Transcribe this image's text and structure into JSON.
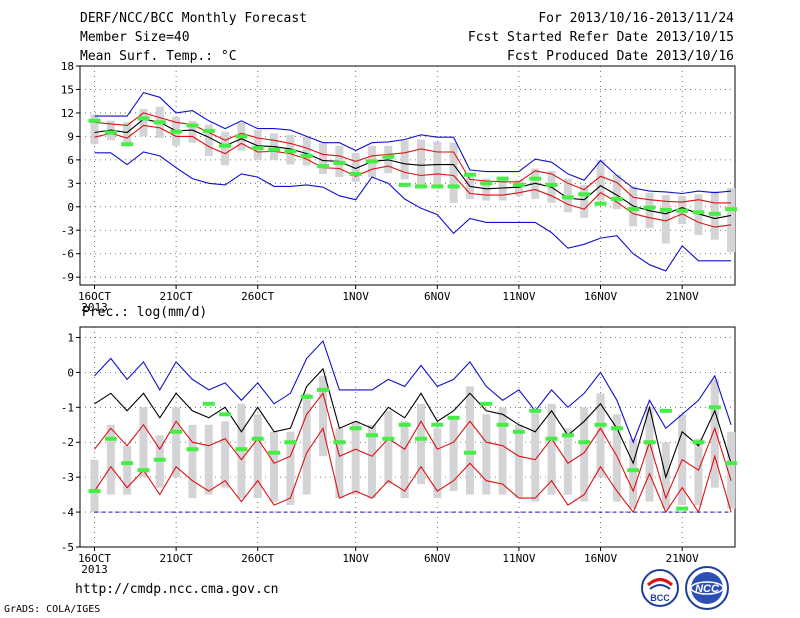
{
  "header": {
    "title": "DERF/NCC/BCC Monthly Forecast",
    "member_size": "Member Size=40",
    "variable": "Mean Surf. Temp.: °C",
    "forecast_period": "For 2013/10/16-2013/11/24",
    "start_ref_date": "Fcst Started Refer Date 2013/10/15",
    "produced_date": "Fcst Produced Date 2013/10/16"
  },
  "footer": {
    "url": "http://cmdp.ncc.cma.gov.cn",
    "credit": "GrADS: COLA/IGES",
    "logos": [
      "BCC",
      "NCC"
    ]
  },
  "colors": {
    "box": "#d4d4d6",
    "median": "#44ee44",
    "mean": "#000000",
    "std": "#dd1111",
    "extreme": "#1111cc",
    "grid": "#555555"
  },
  "chart_data": [
    {
      "type": "box-plot",
      "title": "Mean Surf. Temp.: °C",
      "x_tick_labels": [
        "16OCT",
        "21OCT",
        "26OCT",
        "1NOV",
        "6NOV",
        "11NOV",
        "16NOV",
        "21NOV"
      ],
      "x_tick_days": [
        1,
        6,
        11,
        17,
        22,
        27,
        32,
        37
      ],
      "x_year_label": "2013",
      "ylim": [
        -10,
        18
      ],
      "y_ticks": [
        -9,
        -6,
        -3,
        0,
        3,
        6,
        9,
        12,
        15,
        18
      ],
      "grid": true,
      "days": [
        1,
        2,
        3,
        4,
        5,
        6,
        7,
        8,
        9,
        10,
        11,
        12,
        13,
        14,
        15,
        16,
        17,
        18,
        19,
        20,
        21,
        22,
        23,
        24,
        25,
        26,
        27,
        28,
        29,
        30,
        31,
        32,
        33,
        34,
        35,
        36,
        37,
        38,
        39,
        40
      ],
      "max": [
        11.6,
        11.6,
        11.6,
        14.6,
        14.0,
        12.0,
        12.3,
        11.0,
        10.0,
        11.0,
        10.0,
        10.0,
        9.8,
        9.0,
        8.2,
        8.2,
        7.2,
        8.2,
        8.3,
        8.6,
        9.2,
        8.9,
        8.9,
        4.7,
        4.5,
        4.5,
        4.5,
        6.1,
        5.7,
        4.2,
        3.4,
        5.9,
        4.0,
        2.4,
        2.0,
        1.9,
        1.7,
        2.0,
        1.8,
        2.0
      ],
      "q3": [
        10.8,
        10.6,
        10.4,
        12.0,
        11.4,
        10.8,
        10.5,
        9.5,
        8.5,
        9.4,
        8.8,
        8.5,
        8.1,
        7.5,
        6.7,
        6.5,
        5.8,
        6.5,
        6.7,
        6.9,
        7.4,
        7.0,
        7.0,
        3.5,
        3.3,
        3.2,
        3.2,
        4.6,
        4.2,
        3.0,
        2.2,
        3.9,
        3.1,
        1.2,
        0.9,
        0.7,
        0.6,
        0.9,
        0.5,
        0.5
      ],
      "mean": [
        9.5,
        9.8,
        9.5,
        11.2,
        10.8,
        9.7,
        9.8,
        8.9,
        7.8,
        8.7,
        7.8,
        7.7,
        7.4,
        6.8,
        5.9,
        5.8,
        4.9,
        5.8,
        6.0,
        5.5,
        5.3,
        5.4,
        5.4,
        2.6,
        2.3,
        2.4,
        2.5,
        3.0,
        2.5,
        1.1,
        0.9,
        2.7,
        1.5,
        0.1,
        -0.5,
        -0.9,
        -0.1,
        -0.9,
        -1.5,
        -1.1
      ],
      "q1": [
        8.9,
        9.4,
        8.8,
        10.4,
        10.1,
        9.0,
        9.0,
        7.7,
        6.8,
        8.1,
        7.0,
        7.1,
        6.8,
        6.1,
        5.0,
        4.9,
        3.9,
        4.8,
        5.2,
        4.4,
        4.0,
        4.2,
        4.0,
        1.7,
        1.5,
        1.5,
        1.8,
        2.2,
        1.4,
        0.3,
        -0.3,
        1.8,
        0.6,
        -0.9,
        -1.4,
        -1.8,
        -0.9,
        -2.0,
        -2.6,
        -2.3
      ],
      "min": [
        6.9,
        6.9,
        5.4,
        7.0,
        6.5,
        5.0,
        3.6,
        3.0,
        2.8,
        4.2,
        3.8,
        2.6,
        2.6,
        2.8,
        2.5,
        1.4,
        0.9,
        3.8,
        3.0,
        1.0,
        -0.2,
        -1.0,
        -3.4,
        -1.5,
        -2.0,
        -2.0,
        -2.0,
        -2.0,
        -3.3,
        -5.3,
        -4.8,
        -4.0,
        -3.7,
        -6.0,
        -7.4,
        -8.2,
        -5.0,
        -6.9,
        -6.9,
        -6.9
      ],
      "box_high": [
        11.8,
        11.0,
        10.8,
        12.5,
        12.8,
        11.5,
        11.0,
        10.5,
        9.6,
        10.8,
        9.8,
        9.4,
        9.2,
        9.0,
        8.1,
        7.8,
        6.9,
        7.8,
        7.8,
        8.5,
        8.6,
        8.3,
        8.2,
        3.8,
        3.6,
        3.6,
        3.4,
        4.9,
        4.6,
        3.6,
        2.8,
        6.0,
        4.1,
        2.6,
        1.8,
        1.5,
        1.4,
        1.6,
        2.0,
        2.4
      ],
      "box_low": [
        8.0,
        8.5,
        7.8,
        9.0,
        8.8,
        7.8,
        8.2,
        6.5,
        5.3,
        7.2,
        6.0,
        6.0,
        5.4,
        5.3,
        4.2,
        3.8,
        3.2,
        3.8,
        4.3,
        3.5,
        2.8,
        2.5,
        0.5,
        1.0,
        0.8,
        0.8,
        1.4,
        1.0,
        0.5,
        -0.7,
        -1.4,
        0.8,
        -0.3,
        -2.5,
        -2.7,
        -4.7,
        -2.2,
        -3.6,
        -4.2,
        -5.8
      ],
      "median": [
        11.0,
        9.5,
        8.0,
        11.3,
        10.8,
        9.6,
        10.4,
        9.7,
        7.8,
        9.0,
        7.5,
        7.3,
        7.1,
        6.5,
        5.2,
        5.6,
        4.2,
        5.8,
        6.4,
        2.8,
        2.6,
        2.6,
        2.6,
        4.1,
        3.0,
        3.6,
        2.8,
        3.6,
        2.8,
        1.2,
        1.6,
        0.4,
        1.0,
        -0.3,
        -0.1,
        -0.4,
        -0.5,
        -0.7,
        -0.9,
        -0.3
      ],
      "std_upper": [
        10.2,
        10.5,
        10.1,
        12.2,
        11.7,
        10.4,
        10.6,
        9.8,
        8.7,
        9.6,
        8.6,
        8.4,
        8.3,
        7.4,
        6.7,
        6.7,
        5.7,
        6.6,
        7.0,
        6.4,
        6.2,
        6.3,
        6.1,
        3.2,
        2.9,
        3.0,
        3.1,
        3.8,
        3.3,
        1.8,
        1.6,
        3.4,
        2.3,
        0.9,
        0.3,
        -0.1,
        0.6,
        -0.1,
        -0.7,
        -0.2
      ],
      "std_lower": [
        8.8,
        8.9,
        8.7,
        10.3,
        9.8,
        8.2,
        8.3,
        7.9,
        7.0,
        7.7,
        7.0,
        6.9,
        6.6,
        6.0,
        5.1,
        4.9,
        4.1,
        5.0,
        5.1,
        4.4,
        4.4,
        4.5,
        4.5,
        1.8,
        1.6,
        1.5,
        1.7,
        2.2,
        1.6,
        0.3,
        0.1,
        2.0,
        0.7,
        -0.8,
        -1.2,
        -1.7,
        -1.0,
        -1.7,
        -2.5,
        -2.1
      ]
    },
    {
      "type": "box-plot",
      "title": "Prec.: log(mm/d)",
      "x_tick_labels": [
        "16OCT",
        "21OCT",
        "26OCT",
        "1NOV",
        "6NOV",
        "11NOV",
        "16NOV",
        "21NOV"
      ],
      "x_tick_days": [
        1,
        6,
        11,
        17,
        22,
        27,
        32,
        37
      ],
      "x_year_label": "2013",
      "ylim": [
        -5,
        1.3
      ],
      "y_ticks": [
        -5,
        -4,
        -3,
        -2,
        -1,
        0,
        1
      ],
      "grid": true,
      "days": [
        1,
        2,
        3,
        4,
        5,
        6,
        7,
        8,
        9,
        10,
        11,
        12,
        13,
        14,
        15,
        16,
        17,
        18,
        19,
        20,
        21,
        22,
        23,
        24,
        25,
        26,
        27,
        28,
        29,
        30,
        31,
        32,
        33,
        34,
        35,
        36,
        37,
        38,
        39,
        40
      ],
      "max": [
        -0.1,
        0.4,
        -0.2,
        0.3,
        -0.5,
        0.3,
        -0.2,
        -0.5,
        -0.3,
        -0.8,
        -0.3,
        -0.9,
        -0.6,
        0.4,
        0.9,
        -0.5,
        -0.5,
        -0.5,
        -0.2,
        -0.4,
        0.2,
        -0.4,
        -0.2,
        0.3,
        -0.4,
        -0.8,
        -0.5,
        -1.1,
        -0.5,
        -1.0,
        -0.6,
        0.0,
        -0.8,
        -2.0,
        -0.8,
        -1.6,
        -1.2,
        -0.8,
        -0.1,
        -1.5
      ],
      "mean": [
        -0.9,
        -0.6,
        -1.1,
        -0.6,
        -1.3,
        -0.6,
        -1.1,
        -1.3,
        -1.0,
        -1.7,
        -1.0,
        -1.7,
        -1.6,
        -0.4,
        0.1,
        -1.6,
        -1.4,
        -1.6,
        -1.0,
        -1.3,
        -0.6,
        -1.4,
        -1.1,
        -0.6,
        -1.1,
        -1.2,
        -1.5,
        -1.7,
        -1.1,
        -1.8,
        -1.4,
        -0.9,
        -1.6,
        -2.6,
        -1.0,
        -3.0,
        -1.7,
        -2.1,
        -1.1,
        -2.6
      ],
      "std_upper": [
        -2.2,
        -1.6,
        -2.1,
        -1.5,
        -2.2,
        -1.4,
        -2.0,
        -2.1,
        -1.9,
        -2.5,
        -1.9,
        -2.6,
        -2.4,
        -1.2,
        -0.6,
        -2.4,
        -2.2,
        -2.4,
        -1.9,
        -2.2,
        -1.4,
        -2.2,
        -2.0,
        -1.4,
        -2.0,
        -2.1,
        -2.4,
        -2.5,
        -1.9,
        -2.6,
        -2.3,
        -1.6,
        -2.4,
        -3.4,
        -2.0,
        -3.6,
        -2.5,
        -2.8,
        -1.6,
        -3.1
      ],
      "std_lower": [
        -3.4,
        -2.7,
        -3.3,
        -2.8,
        -3.5,
        -2.7,
        -3.1,
        -3.4,
        -3.1,
        -3.7,
        -3.1,
        -3.8,
        -3.6,
        -2.3,
        -1.6,
        -3.6,
        -3.4,
        -3.6,
        -3.1,
        -3.4,
        -2.7,
        -3.4,
        -3.1,
        -2.6,
        -3.1,
        -3.2,
        -3.6,
        -3.6,
        -3.1,
        -3.8,
        -3.5,
        -2.7,
        -3.4,
        -4.0,
        -2.9,
        -4.0,
        -3.3,
        -4.0,
        -2.4,
        -4.0
      ],
      "min": [
        -4,
        -3.6,
        -4,
        -4,
        -4,
        -4,
        -4,
        -4,
        -4,
        -3.6,
        -4,
        -4,
        -4,
        -3.5,
        -2.4,
        -4,
        -4,
        -4,
        -4,
        -4,
        -3.7,
        -4,
        -4,
        -4,
        -4,
        -4,
        -4,
        -4,
        -4,
        -4,
        -4,
        -4,
        -4,
        -4,
        -4,
        -4,
        -4,
        -4,
        -4,
        -4
      ],
      "box_high": [
        -2.5,
        -1.5,
        -2.1,
        -1.0,
        -1.8,
        -1.0,
        -1.5,
        -1.5,
        -1.4,
        -0.9,
        -1.2,
        -1.7,
        -1.7,
        -0.6,
        -0.1,
        -1.6,
        -1.4,
        -1.5,
        -1.1,
        -1.4,
        -0.9,
        -1.6,
        -1.3,
        -0.4,
        -1.2,
        -1.0,
        -1.5,
        -1.1,
        -0.9,
        -1.6,
        -1.0,
        -0.6,
        -1.2,
        -1.9,
        -1.0,
        -2.0,
        -1.2,
        -1.9,
        -0.2,
        -1.7
      ],
      "box_low": [
        -4.0,
        -3.5,
        -3.5,
        -3.0,
        -3.3,
        -3.0,
        -3.6,
        -3.5,
        -3.3,
        -3.6,
        -3.6,
        -3.7,
        -3.8,
        -3.5,
        -2.4,
        -3.6,
        -3.5,
        -3.6,
        -3.2,
        -3.6,
        -3.2,
        -3.6,
        -3.4,
        -3.5,
        -3.5,
        -3.5,
        -3.6,
        -3.7,
        -3.5,
        -3.5,
        -3.7,
        -3.0,
        -3.7,
        -3.9,
        -3.7,
        -3.9,
        -3.8,
        -3.8,
        -3.3,
        -3.9
      ],
      "median": [
        -3.4,
        -1.9,
        -2.6,
        -2.8,
        -2.5,
        -1.7,
        -2.2,
        -0.9,
        -1.2,
        -2.2,
        -1.9,
        -2.3,
        -2.0,
        -0.7,
        -0.5,
        -2.0,
        -1.6,
        -1.8,
        -1.9,
        -1.5,
        -1.9,
        -1.5,
        -1.3,
        -2.3,
        -0.9,
        -1.5,
        -1.7,
        -1.1,
        -1.9,
        -1.8,
        -2.0,
        -1.5,
        -1.6,
        -2.8,
        -2.0,
        -1.1,
        -3.9,
        -2.0,
        -1.0,
        -2.6
      ],
      "floor": -4
    }
  ]
}
